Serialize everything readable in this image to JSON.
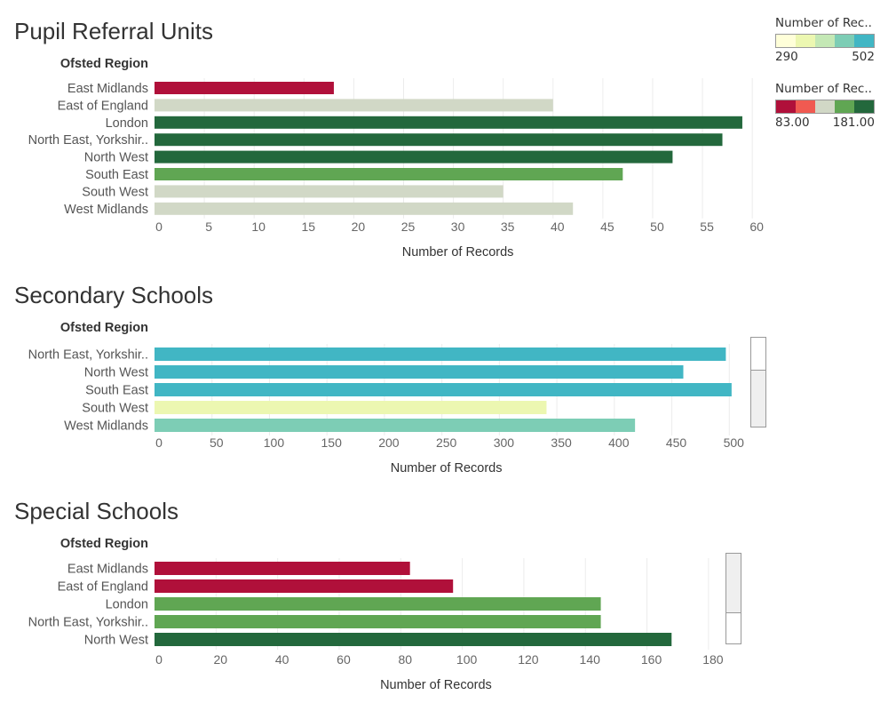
{
  "charts": [
    {
      "title": "Pupil Referral Units",
      "chart_data": {
        "type": "bar",
        "orientation": "horizontal",
        "row_header": "Ofsted Region",
        "categories": [
          "East Midlands",
          "East of England",
          "London",
          "North East, Yorkshir..",
          "North West",
          "South East",
          "South West",
          "West Midlands"
        ],
        "values": [
          18,
          40,
          59,
          57,
          52,
          47,
          35,
          42
        ],
        "colors": [
          "#b0103a",
          "#d1d8c6",
          "#23683c",
          "#23683c",
          "#23683c",
          "#60a653",
          "#d1d8c6",
          "#d1d8c6"
        ],
        "xlabel": "Number of Records",
        "xticks": [
          0,
          5,
          10,
          15,
          20,
          25,
          30,
          35,
          40,
          45,
          50,
          55,
          60
        ],
        "xlim": [
          0,
          61.5
        ],
        "grid": true
      }
    },
    {
      "title": "Secondary Schools",
      "chart_data": {
        "type": "bar",
        "orientation": "horizontal",
        "row_header": "Ofsted Region",
        "categories": [
          "North East, Yorkshir..",
          "North West",
          "South East",
          "South West",
          "West Midlands"
        ],
        "values": [
          497,
          460,
          502,
          341,
          418
        ],
        "colors": [
          "#41b6c4",
          "#41b6c4",
          "#41b6c4",
          "#ecf7b1",
          "#7dcdb5"
        ],
        "xlabel": "Number of Records",
        "xticks": [
          0,
          50,
          100,
          150,
          200,
          250,
          300,
          350,
          400,
          450,
          500
        ],
        "xlim": [
          0,
          533
        ],
        "grid": true
      }
    },
    {
      "title": "Special Schools",
      "chart_data": {
        "type": "bar",
        "orientation": "horizontal",
        "row_header": "Ofsted Region",
        "categories": [
          "East Midlands",
          "East of England",
          "London",
          "North East, Yorkshir..",
          "North West"
        ],
        "values": [
          83,
          97,
          145,
          145,
          168
        ],
        "colors": [
          "#b0103a",
          "#b0103a",
          "#60a653",
          "#60a653",
          "#23683c"
        ],
        "xlabel": "Number of Records",
        "xticks": [
          0,
          20,
          40,
          60,
          80,
          100,
          120,
          140,
          160,
          180
        ],
        "xlim": [
          0,
          191
        ],
        "grid": true
      }
    }
  ],
  "legends": [
    {
      "title": "Number of Rec..",
      "min_label": "290",
      "max_label": "502",
      "colors": [
        "#ffffd9",
        "#ecf7b1",
        "#c4e8b5",
        "#7dcdb5",
        "#41b6c4"
      ]
    },
    {
      "title": "Number of Rec..",
      "min_label": "83.00",
      "max_label": "181.00",
      "colors": [
        "#b0103a",
        "#f05a51",
        "#d1d8c6",
        "#60a653",
        "#23683c"
      ]
    }
  ]
}
